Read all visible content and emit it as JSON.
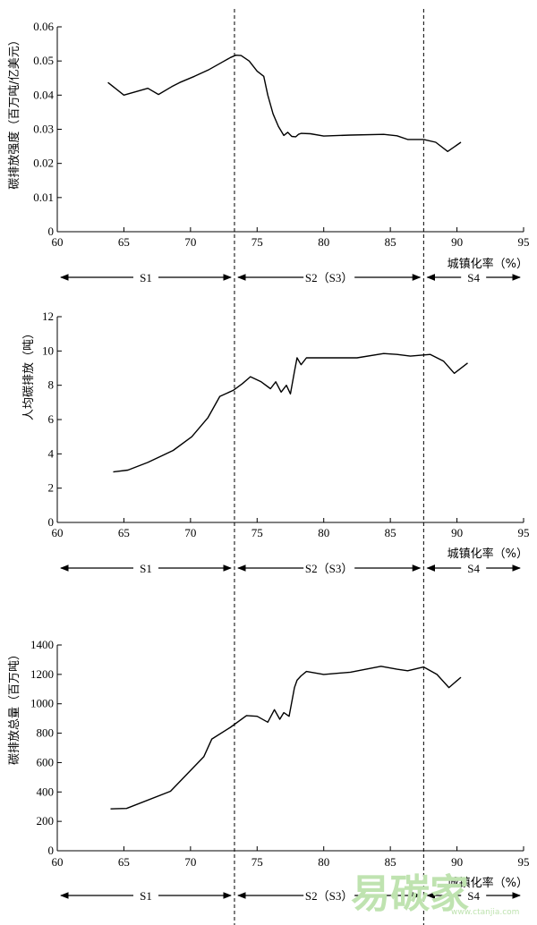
{
  "watermark": {
    "text": "易碳家",
    "sub": "www.ctanjia.com"
  },
  "xlabel": "城镇化率（%）",
  "xlim": [
    60,
    95
  ],
  "x_ticks": [
    "60",
    "65",
    "70",
    "75",
    "80",
    "85",
    "90",
    "95"
  ],
  "boundaries": [
    73.3,
    87.5
  ],
  "stages": [
    {
      "label": "S1",
      "from": 60,
      "to": 73.3
    },
    {
      "label": "S2（S3）",
      "from": 73.3,
      "to": 87.5
    },
    {
      "label": "S4",
      "from": 87.5,
      "to": 95
    }
  ],
  "chart_data": [
    {
      "type": "line",
      "ylabel": "碳排放强度（百万吨/亿美元）",
      "xlim": [
        60,
        95
      ],
      "ylim": [
        0,
        0.06
      ],
      "y_ticks": [
        "0",
        "0.01",
        "0.02",
        "0.03",
        "0.04",
        "0.05",
        "0.06"
      ],
      "x": [
        63.8,
        65.0,
        66.8,
        67.6,
        68.6,
        69.2,
        70.3,
        71.4,
        72.4,
        73.0,
        73.4,
        73.8,
        74.4,
        75.0,
        75.5,
        75.8,
        76.2,
        76.6,
        77.0,
        77.3,
        77.6,
        77.9,
        78.1,
        78.3,
        79.0,
        80.0,
        82.0,
        84.5,
        85.5,
        86.3,
        87.5,
        88.4,
        89.3,
        90.3
      ],
      "y": [
        0.0437,
        0.04,
        0.042,
        0.0402,
        0.0425,
        0.0437,
        0.0455,
        0.0475,
        0.0497,
        0.051,
        0.0517,
        0.0516,
        0.05,
        0.047,
        0.0455,
        0.04,
        0.0345,
        0.0308,
        0.0282,
        0.0291,
        0.0279,
        0.0278,
        0.0285,
        0.0288,
        0.0287,
        0.028,
        0.0283,
        0.0285,
        0.0281,
        0.027,
        0.027,
        0.0262,
        0.0235,
        0.0262
      ]
    },
    {
      "type": "line",
      "ylabel": "人均碳排放（吨）",
      "xlim": [
        60,
        95
      ],
      "ylim": [
        0,
        12
      ],
      "y_ticks": [
        "0",
        "2",
        "4",
        "6",
        "8",
        "10",
        "12"
      ],
      "x": [
        64.2,
        65.3,
        66.8,
        68.7,
        70.1,
        71.3,
        72.2,
        73.2,
        73.9,
        74.5,
        75.3,
        76.0,
        76.4,
        76.8,
        77.2,
        77.5,
        77.8,
        78.0,
        78.3,
        78.7,
        79.3,
        80.5,
        82.5,
        84.5,
        85.5,
        86.5,
        88.0,
        89.0,
        89.8,
        90.8
      ],
      "y": [
        2.95,
        3.05,
        3.5,
        4.2,
        5.0,
        6.1,
        7.35,
        7.7,
        8.1,
        8.5,
        8.2,
        7.8,
        8.2,
        7.6,
        8.0,
        7.5,
        8.8,
        9.6,
        9.2,
        9.6,
        9.6,
        9.6,
        9.6,
        9.85,
        9.8,
        9.7,
        9.8,
        9.4,
        8.7,
        9.3
      ]
    },
    {
      "type": "line",
      "ylabel": "碳排放总量（百万吨）",
      "xlim": [
        60,
        95
      ],
      "ylim": [
        0,
        1400
      ],
      "y_ticks": [
        "0",
        "200",
        "400",
        "600",
        "800",
        "1000",
        "1200",
        "1400"
      ],
      "x": [
        64.0,
        65.2,
        68.5,
        71.0,
        71.6,
        73.0,
        74.2,
        75.0,
        75.8,
        76.3,
        76.7,
        77.0,
        77.4,
        77.8,
        78.0,
        78.3,
        78.7,
        80.0,
        82.0,
        84.3,
        85.5,
        86.3,
        87.5,
        88.5,
        89.4,
        90.3
      ],
      "y": [
        285,
        288,
        405,
        640,
        760,
        840,
        920,
        915,
        875,
        960,
        895,
        940,
        915,
        1110,
        1160,
        1190,
        1220,
        1200,
        1215,
        1255,
        1235,
        1225,
        1250,
        1200,
        1110,
        1180
      ]
    }
  ]
}
